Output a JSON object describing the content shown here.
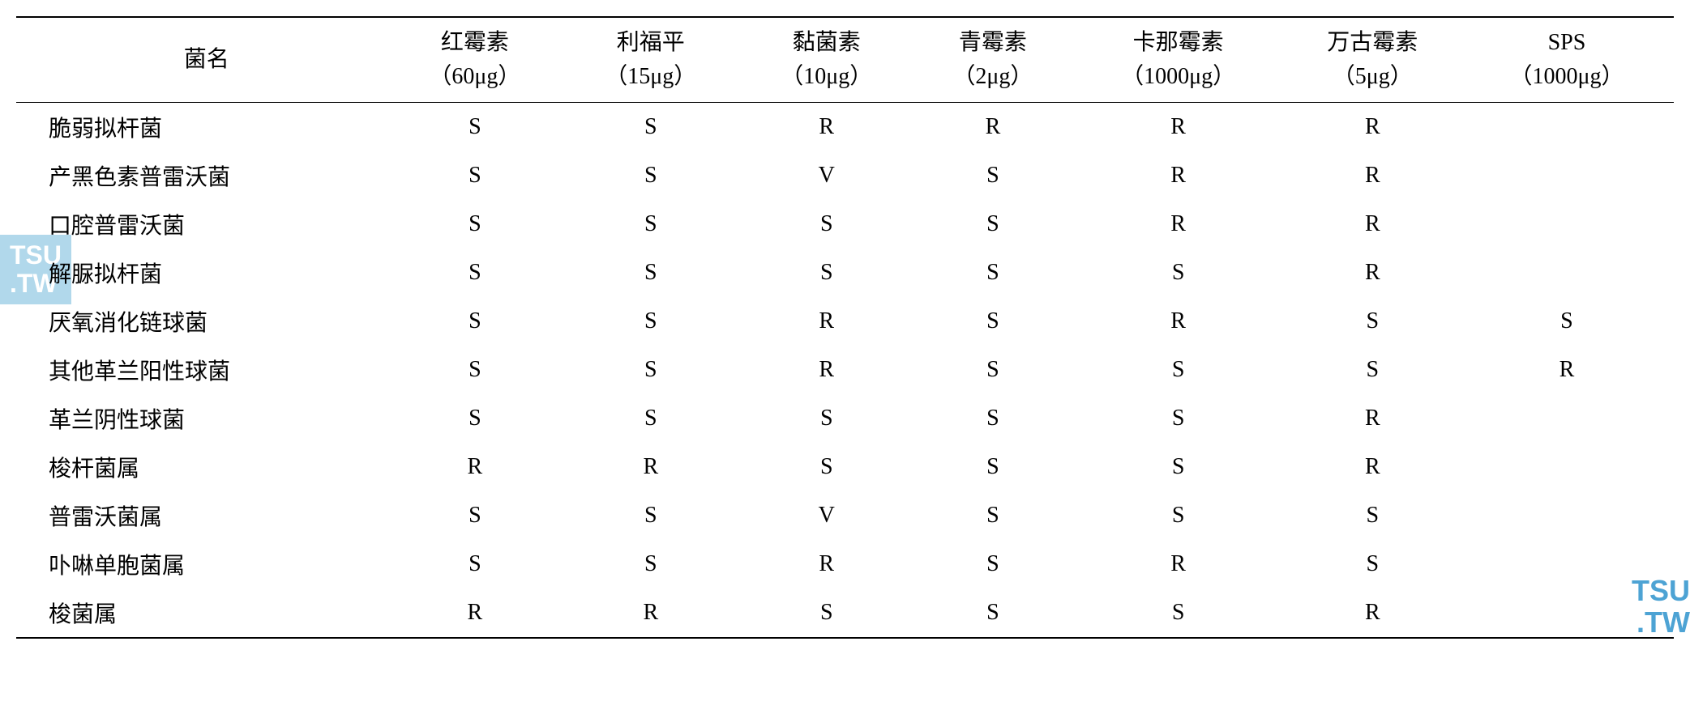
{
  "table": {
    "columns": [
      {
        "main": "菌名",
        "sub": ""
      },
      {
        "main": "红霉素",
        "sub": "（60μg）"
      },
      {
        "main": "利福平",
        "sub": "（15μg）"
      },
      {
        "main": "黏菌素",
        "sub": "（10μg）"
      },
      {
        "main": "青霉素",
        "sub": "（2μg）"
      },
      {
        "main": "卡那霉素",
        "sub": "（1000μg）"
      },
      {
        "main": "万古霉素",
        "sub": "（5μg）"
      },
      {
        "main": "SPS",
        "sub": "（1000μg）"
      }
    ],
    "rows": [
      [
        "脆弱拟杆菌",
        "S",
        "S",
        "R",
        "R",
        "R",
        "R",
        ""
      ],
      [
        "产黑色素普雷沃菌",
        "S",
        "S",
        "V",
        "S",
        "R",
        "R",
        ""
      ],
      [
        "口腔普雷沃菌",
        "S",
        "S",
        "S",
        "S",
        "R",
        "R",
        ""
      ],
      [
        "解脲拟杆菌",
        "S",
        "S",
        "S",
        "S",
        "S",
        "R",
        ""
      ],
      [
        "厌氧消化链球菌",
        "S",
        "S",
        "R",
        "S",
        "R",
        "S",
        "S"
      ],
      [
        "其他革兰阳性球菌",
        "S",
        "S",
        "R",
        "S",
        "S",
        "S",
        "R"
      ],
      [
        "革兰阴性球菌",
        "S",
        "S",
        "S",
        "S",
        "S",
        "R",
        ""
      ],
      [
        "梭杆菌属",
        "R",
        "R",
        "S",
        "S",
        "S",
        "R",
        ""
      ],
      [
        "普雷沃菌属",
        "S",
        "S",
        "V",
        "S",
        "S",
        "S",
        ""
      ],
      [
        "卟啉单胞菌属",
        "S",
        "S",
        "R",
        "S",
        "R",
        "S",
        ""
      ],
      [
        "梭菌属",
        "R",
        "R",
        "S",
        "S",
        "S",
        "R",
        ""
      ]
    ],
    "background_color": "#ffffff",
    "border_color": "#000000",
    "font_size": 28,
    "header_font_size": 28
  },
  "watermarks": {
    "left": {
      "line1": "TSU",
      "line2": ".TW",
      "bg_color": "#66b3d9",
      "text_color": "#ffffff"
    },
    "right": {
      "line1": "TSU",
      "line2": ".TW",
      "text_color": "#4da3d4"
    }
  }
}
